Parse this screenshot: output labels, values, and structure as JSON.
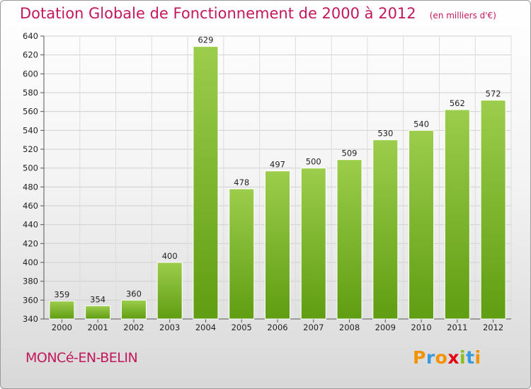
{
  "header": {
    "title": "Dotation Globale de Fonctionnement de 2000 à 2012",
    "subtitle": "(en milliers d'€)"
  },
  "footer": {
    "commune": "MONCé-EN-BELIN",
    "logo_letters": [
      {
        "ch": "P",
        "color": "#f39200"
      },
      {
        "ch": "r",
        "color": "#3a9ad9"
      },
      {
        "ch": "o",
        "color": "#f39200"
      },
      {
        "ch": "x",
        "color": "#e30613"
      },
      {
        "ch": "i",
        "color": "#8bbd1d"
      },
      {
        "ch": "t",
        "color": "#3a9ad9"
      },
      {
        "ch": "i",
        "color": "#f39200"
      }
    ]
  },
  "chart_data": {
    "type": "bar",
    "title": "Dotation Globale de Fonctionnement de 2000 à 2012",
    "subtitle": "(en milliers d'€)",
    "categories": [
      "2000",
      "2001",
      "2002",
      "2003",
      "2004",
      "2005",
      "2006",
      "2007",
      "2008",
      "2009",
      "2010",
      "2011",
      "2012"
    ],
    "values": [
      359,
      354,
      360,
      400,
      629,
      478,
      497,
      500,
      509,
      530,
      540,
      562,
      572
    ],
    "xlabel": "",
    "ylabel": "",
    "ylim": [
      340,
      640
    ],
    "yticks": [
      340,
      360,
      380,
      400,
      420,
      440,
      460,
      480,
      500,
      520,
      540,
      560,
      580,
      600,
      620,
      640
    ],
    "grid": true,
    "legend": "none",
    "bar_color_top": "#9ccd4c",
    "bar_color_bottom": "#5f9d12"
  }
}
